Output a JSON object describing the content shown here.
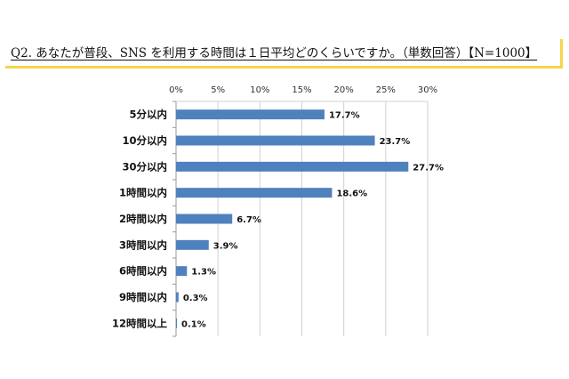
{
  "chart_data": {
    "type": "bar",
    "orientation": "horizontal",
    "title": "Q2. あなたが普段、SNS を利用する時間は１日平均どのくらいですか。（単数回答）【N=1000】",
    "categories": [
      "5分以内",
      "10分以内",
      "30分以内",
      "1時間以内",
      "2時間以内",
      "3時間以内",
      "6時間以内",
      "9時間以内",
      "12時間以上"
    ],
    "values": [
      17.7,
      23.7,
      27.7,
      18.6,
      6.7,
      3.9,
      1.3,
      0.3,
      0.1
    ],
    "value_labels": [
      "17.7%",
      "23.7%",
      "27.7%",
      "18.6%",
      "6.7%",
      "3.9%",
      "1.3%",
      "0.3%",
      "0.1%"
    ],
    "xlim": [
      0,
      30
    ],
    "xticks": [
      "0%",
      "5%",
      "10%",
      "15%",
      "20%",
      "25%",
      "30%"
    ],
    "xlabel": "",
    "ylabel": "",
    "grid": true,
    "legend": "none",
    "bar_color": "#4f81bd"
  }
}
